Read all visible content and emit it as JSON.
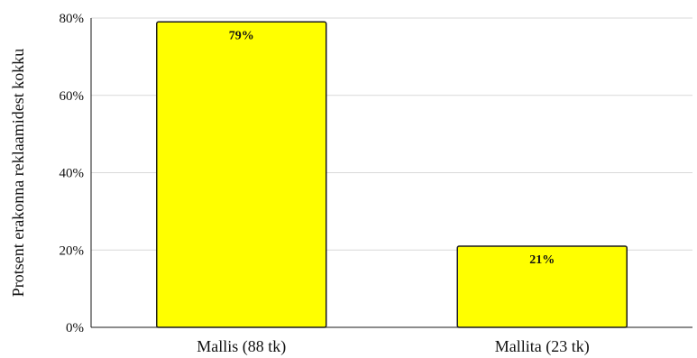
{
  "chart_data": {
    "type": "bar",
    "title": "",
    "xlabel": "",
    "ylabel": "Protsent erakonna reklaamidest kokku",
    "categories": [
      "Mallis (88 tk)",
      "Mallita (23 tk)"
    ],
    "values": [
      79,
      21
    ],
    "data_labels": [
      "79%",
      "21%"
    ],
    "y_unit": "%",
    "ylim": [
      0,
      80
    ],
    "y_ticks": [
      0,
      20,
      40,
      60,
      80
    ],
    "y_tick_labels": [
      "0%",
      "20%",
      "40%",
      "60%",
      "80%"
    ],
    "grid": true,
    "legend": "none",
    "bar_color": "#ffff00",
    "bar_edge_color": "#1a1a1a",
    "grid_color": "#d9d9d9",
    "axis_color": "#1a1a1a"
  }
}
